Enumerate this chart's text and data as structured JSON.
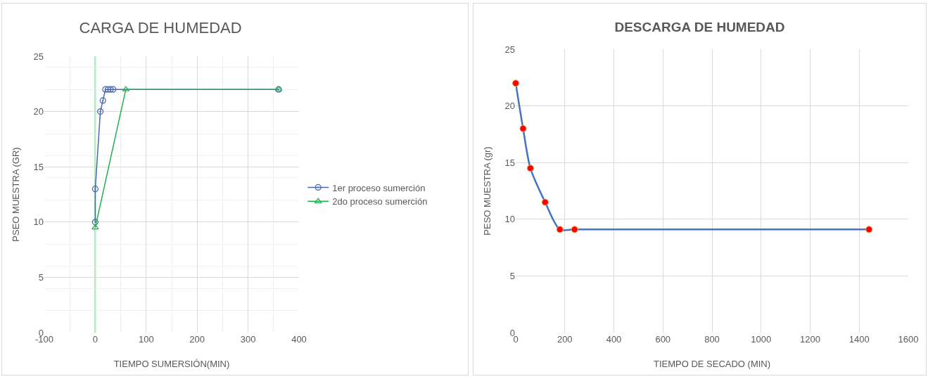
{
  "chart_data": [
    {
      "type": "line",
      "title": "CARGA DE HUMEDAD",
      "xlabel": "TIEMPO SUMERSIÓN(MIN)",
      "ylabel": "PSEO MUESTRA (GR)",
      "xlim": [
        -100,
        400
      ],
      "xticks": [
        -100,
        0,
        100,
        200,
        300,
        400
      ],
      "ylim": [
        0,
        25
      ],
      "yticks": [
        0,
        5,
        10,
        15,
        20,
        25
      ],
      "grid": true,
      "legend": "right",
      "ref_lines": [
        {
          "axis": "x",
          "value": 0,
          "color": "#1eb050"
        }
      ],
      "series": [
        {
          "name": "1er proceso sumerción",
          "color": "#4a6aad",
          "marker": "circle",
          "x": [
            0,
            0,
            10,
            15,
            20,
            25,
            30,
            35,
            360
          ],
          "values": [
            10,
            13,
            20,
            21,
            22,
            22,
            22,
            22,
            22
          ]
        },
        {
          "name": "2do proceso sumerción",
          "color": "#1eb050",
          "marker": "triangle",
          "x": [
            0,
            60,
            360
          ],
          "values": [
            9.5,
            22,
            22
          ]
        }
      ]
    },
    {
      "type": "line",
      "title": "DESCARGA DE HUMEDAD",
      "xlabel": "TIEMPO DE SECADO (MIN)",
      "ylabel": "PESO MUESTRA (gr)",
      "xlim": [
        0,
        1600
      ],
      "xticks": [
        0,
        200,
        400,
        600,
        800,
        1000,
        1200,
        1400,
        1600
      ],
      "ylim": [
        0,
        25
      ],
      "yticks": [
        0,
        5,
        10,
        15,
        20,
        25
      ],
      "grid": true,
      "legend": false,
      "series": [
        {
          "color": "#4472c4",
          "marker": "circle",
          "colors": [
            "#ff0000",
            "#ff0000",
            "#ff0000",
            "#ff0000",
            "#ff0000",
            "#ff0000",
            "#ff0000"
          ],
          "x": [
            0,
            30,
            60,
            120,
            180,
            240,
            1440
          ],
          "values": [
            22,
            18,
            14.5,
            11.5,
            9.1,
            9.1,
            9.1
          ]
        }
      ]
    }
  ]
}
